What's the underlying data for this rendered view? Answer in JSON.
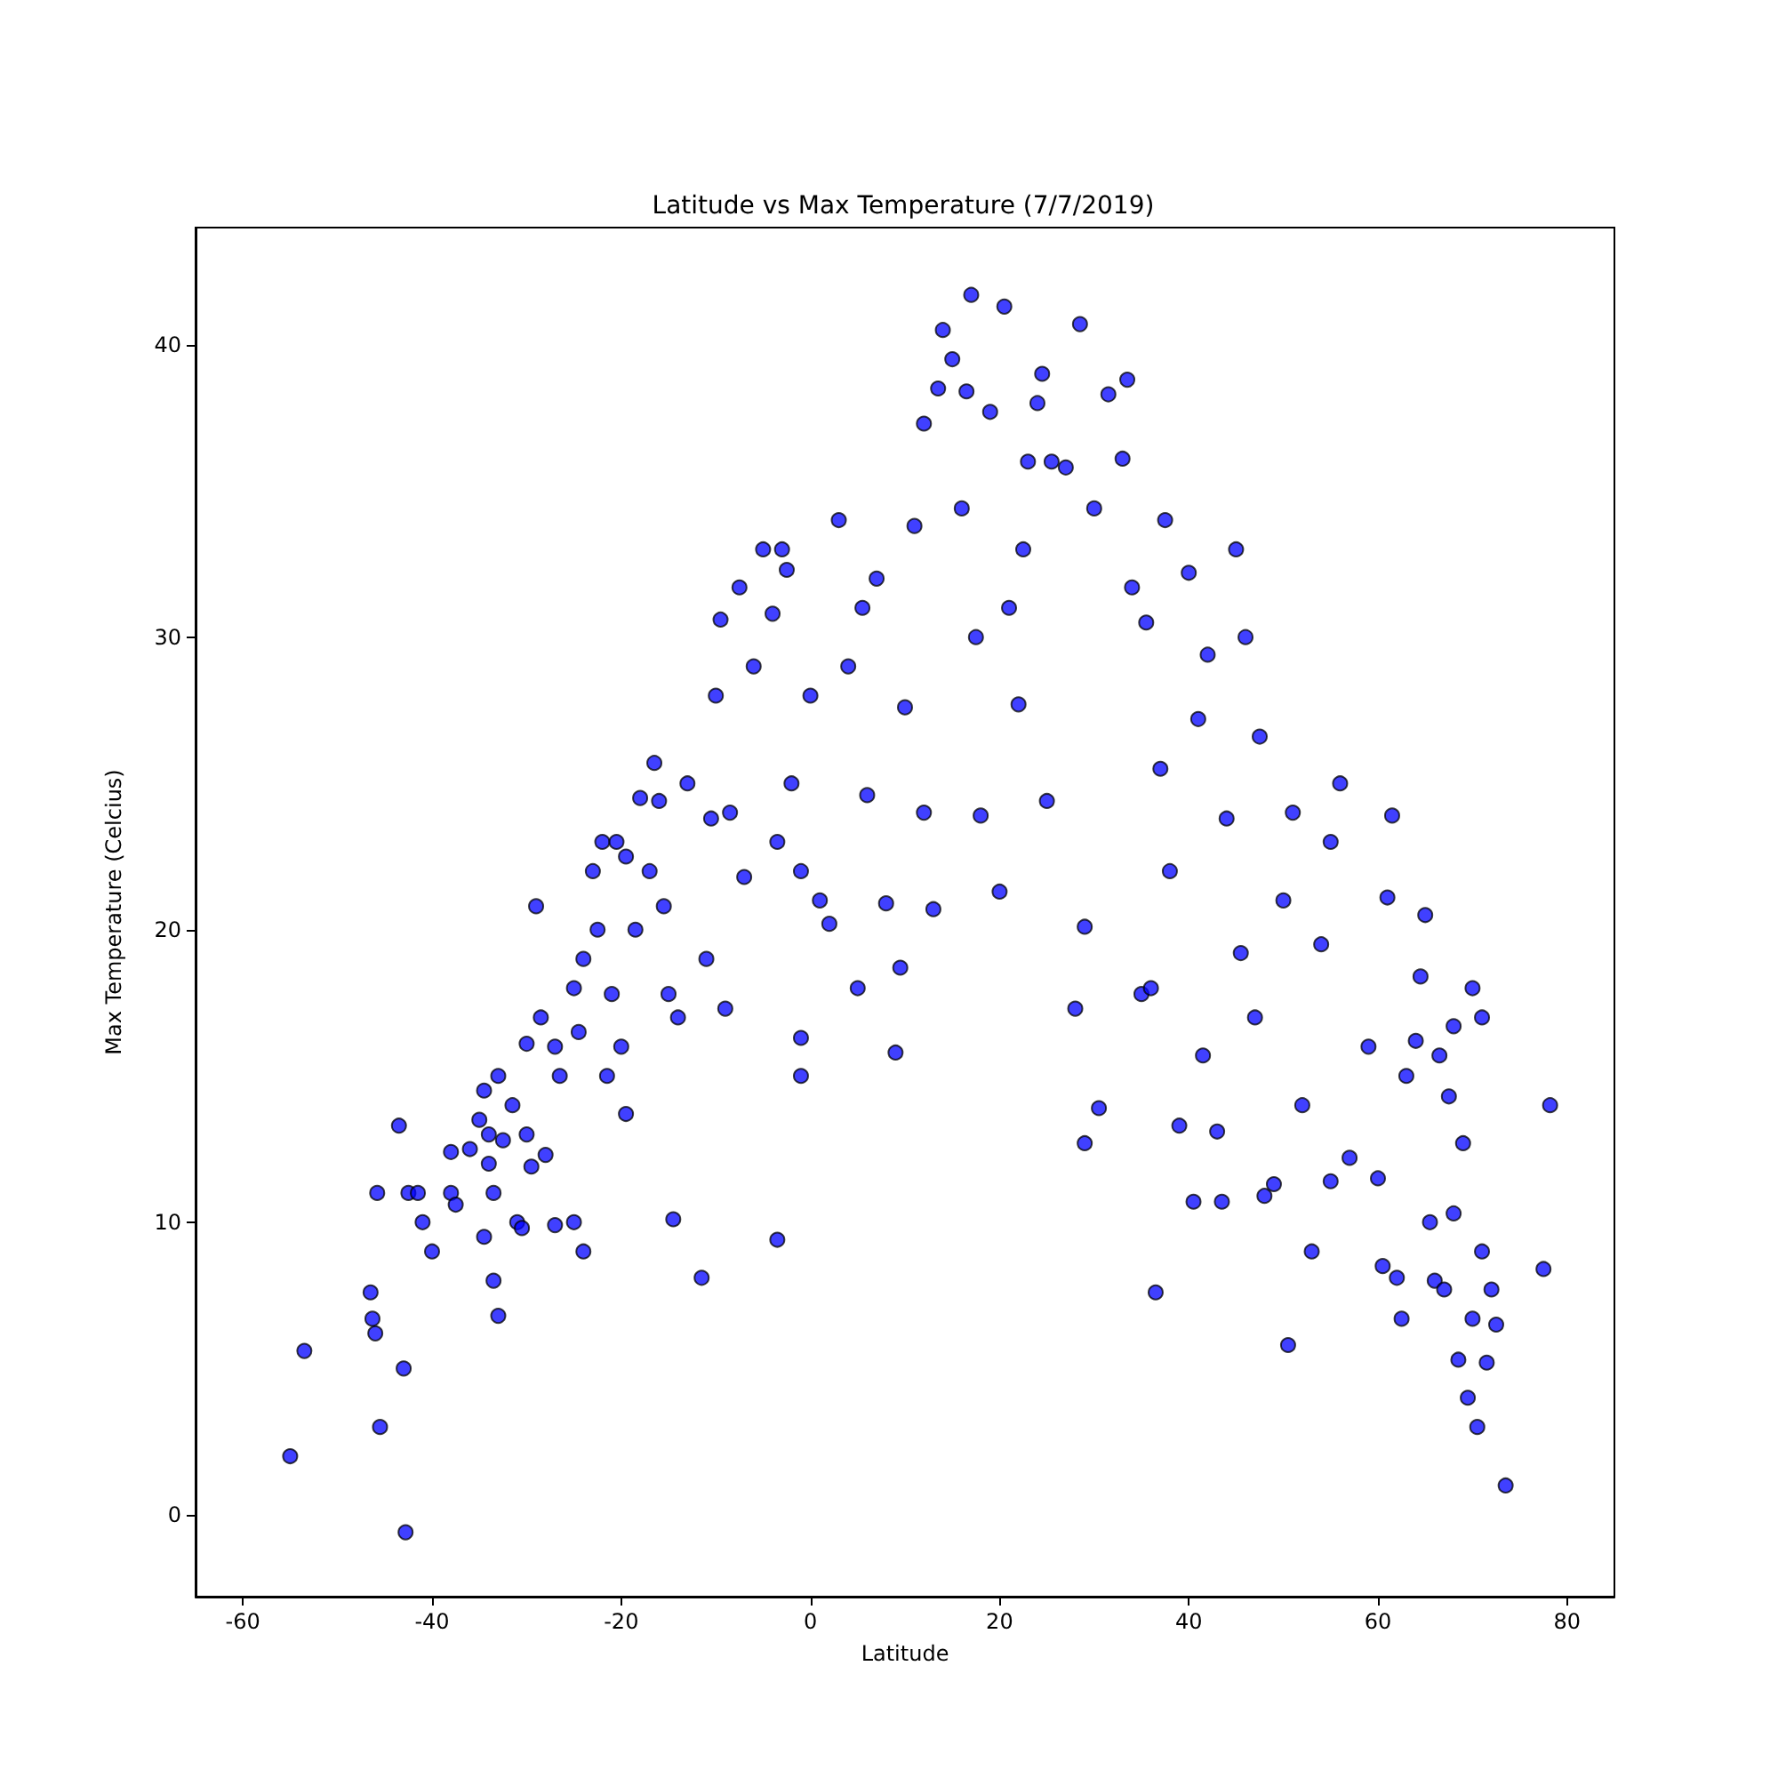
{
  "chart_data": {
    "type": "scatter",
    "title": "Latitude vs Max Temperature (7/7/2019)",
    "xlabel": "Latitude",
    "ylabel": "Max Temperature (Celcius)",
    "xlim": [
      -65,
      85
    ],
    "xticks": [
      -60,
      -40,
      -20,
      0,
      20,
      40,
      60,
      80
    ],
    "ylim": [
      -2.8,
      44
    ],
    "yticks": [
      0,
      10,
      20,
      30,
      40
    ],
    "grid": false,
    "marker": "circle",
    "series": [
      {
        "color": "#0000ff",
        "x": [
          -55,
          -53.5,
          -46.5,
          -46.3,
          -46,
          -45.8,
          -45.5,
          -43.5,
          -43,
          -42.8,
          -42.5,
          -41.5,
          -41,
          -40,
          -38,
          -38,
          -37.5,
          -36,
          -35,
          -34.5,
          -34.5,
          -34,
          -34,
          -33.5,
          -33.5,
          -33,
          -33,
          -32.5,
          -31.5,
          -31,
          -30.5,
          -30,
          -30,
          -29.5,
          -29,
          -28.5,
          -28,
          -27,
          -27,
          -26.5,
          -25,
          -25,
          -24.5,
          -24,
          -24,
          -23,
          -22.5,
          -22,
          -21.5,
          -21,
          -20.5,
          -20,
          -19.5,
          -19.5,
          -18.5,
          -18,
          -17,
          -16.5,
          -16,
          -15.5,
          -15,
          -14.5,
          -14,
          -13,
          -11.5,
          -11,
          -10.5,
          -10,
          -9.5,
          -9,
          -8.5,
          -7.5,
          -7,
          -6,
          -5,
          -4,
          -3.5,
          -3.5,
          -3,
          -2.5,
          -2,
          -1,
          -1,
          -1,
          0,
          1,
          2,
          3,
          4,
          5,
          5.5,
          6,
          7,
          8,
          9,
          9.5,
          10,
          11,
          12,
          12,
          13,
          13.5,
          14,
          15,
          16,
          16.5,
          17,
          17.5,
          18,
          19,
          20,
          20.5,
          21,
          22,
          22.5,
          23,
          24,
          24.5,
          25,
          25.5,
          27,
          28,
          28.5,
          29,
          29,
          30,
          30.5,
          31.5,
          33,
          33.5,
          34,
          35,
          35.5,
          36,
          36.5,
          37,
          37.5,
          38,
          39,
          40,
          40.5,
          41,
          41.5,
          42,
          43,
          43.5,
          44,
          45,
          45.5,
          46,
          47,
          47.5,
          48,
          49,
          50,
          50.5,
          51,
          52,
          53,
          54,
          55,
          55,
          56,
          57,
          59,
          60,
          60.5,
          61,
          61.5,
          62,
          62.5,
          63,
          64,
          64.5,
          65,
          65.5,
          66,
          66.5,
          67,
          67.5,
          68,
          68,
          68.5,
          69,
          69.5,
          70,
          70,
          70.5,
          71,
          71,
          71.5,
          72,
          72.5,
          73.5,
          77.5,
          78.2
        ],
        "values": [
          2,
          5.6,
          7.6,
          6.7,
          6.2,
          11,
          3,
          13.3,
          5,
          -0.6,
          11,
          11,
          10,
          9,
          12.4,
          11,
          10.6,
          12.5,
          13.5,
          14.5,
          9.5,
          12,
          13,
          11,
          8,
          15,
          6.8,
          12.8,
          14,
          10,
          9.8,
          13,
          16.1,
          11.9,
          20.8,
          17,
          12.3,
          9.9,
          16,
          15,
          18,
          10,
          16.5,
          19,
          9,
          22,
          20,
          23,
          15,
          17.8,
          23,
          16,
          13.7,
          22.5,
          20,
          24.5,
          22,
          25.7,
          24.4,
          20.8,
          17.8,
          10.1,
          17,
          25,
          8.1,
          19,
          23.8,
          28,
          30.6,
          17.3,
          24,
          31.7,
          21.8,
          29,
          33,
          30.8,
          9.4,
          23,
          33,
          32.3,
          25,
          22,
          16.3,
          15,
          28,
          21,
          20.2,
          34,
          29,
          18,
          31,
          24.6,
          32,
          20.9,
          15.8,
          18.7,
          27.6,
          33.8,
          37.3,
          24,
          20.7,
          38.5,
          40.5,
          39.5,
          34.4,
          38.4,
          41.7,
          30,
          23.9,
          37.7,
          21.3,
          41.3,
          31,
          27.7,
          33,
          36,
          38,
          39,
          24.4,
          36,
          35.8,
          17.3,
          40.7,
          12.7,
          20.1,
          34.4,
          13.9,
          38.3,
          36.1,
          38.8,
          31.7,
          17.8,
          30.5,
          18,
          7.6,
          25.5,
          34,
          22,
          13.3,
          32.2,
          10.7,
          27.2,
          15.7,
          29.4,
          13.1,
          10.7,
          23.8,
          33,
          19.2,
          30,
          17,
          26.6,
          10.9,
          11.3,
          21,
          5.8,
          24,
          14,
          9,
          19.5,
          11.4,
          23,
          25,
          12.2,
          16,
          11.5,
          8.5,
          21.1,
          23.9,
          8.1,
          6.7,
          15,
          16.2,
          18.4,
          20.5,
          10,
          8,
          15.7,
          7.7,
          14.3,
          16.7,
          10.3,
          5.3,
          12.7,
          4,
          6.7,
          18,
          3,
          17,
          9,
          5.2,
          7.7,
          6.5,
          1,
          8.4,
          14
        ]
      }
    ]
  }
}
